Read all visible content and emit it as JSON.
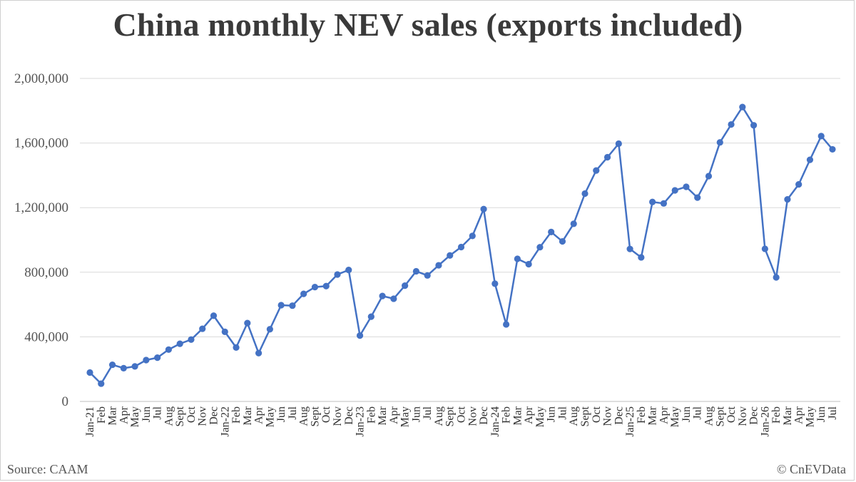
{
  "chart_data": {
    "type": "line",
    "title": "China monthly NEV sales (exports included)",
    "ylim": [
      0,
      2000000
    ],
    "yticks": [
      "0",
      "400,000",
      "800,000",
      "1,200,000",
      "1,600,000",
      "2,000,000"
    ],
    "grid": true,
    "legend": "none",
    "color": "#4472c4",
    "categories": [
      "Jan-21",
      "Feb",
      "Mar",
      "Apr",
      "May",
      "Jun",
      "Jul",
      "Aug",
      "Sept",
      "Oct",
      "Nov",
      "Dec",
      "Jan-22",
      "Feb",
      "Mar",
      "Apr",
      "May",
      "Jun",
      "Jul",
      "Aug",
      "Sept",
      "Oct",
      "Nov",
      "Dec",
      "Jan-23",
      "Feb",
      "Mar",
      "Apr",
      "May",
      "Jun",
      "Jul",
      "Aug",
      "Sept",
      "Oct",
      "Nov",
      "Dec",
      "Jan-24",
      "Feb",
      "Mar",
      "Apr",
      "May",
      "Jun",
      "Jul",
      "Aug",
      "Sept",
      "Oct",
      "Nov",
      "Dec",
      "Jan-25",
      "Feb",
      "Mar",
      "Apr",
      "May",
      "Jun",
      "Jul",
      "Aug",
      "Sept",
      "Oct",
      "Nov",
      "Dec",
      "Jan-26",
      "Feb",
      "Mar",
      "Apr",
      "May",
      "Jun",
      "Jul"
    ],
    "values": [
      179000,
      110000,
      227000,
      206000,
      217000,
      256000,
      271000,
      321000,
      357000,
      383000,
      450000,
      531000,
      431000,
      334000,
      485000,
      299000,
      447000,
      596000,
      593000,
      666000,
      708000,
      714000,
      786000,
      814000,
      408000,
      525000,
      653000,
      636000,
      717000,
      806000,
      780000,
      843000,
      904000,
      956000,
      1025000,
      1191000,
      729000,
      477000,
      883000,
      850000,
      955000,
      1049000,
      991000,
      1100000,
      1287000,
      1430000,
      1512000,
      1596000,
      944000,
      892000,
      1235000,
      1226000,
      1307000,
      1329000,
      1262000,
      1395000,
      1604000,
      1715000,
      1823000,
      1710000,
      945000,
      768000,
      1251000,
      1344000,
      1496000,
      1643000,
      1561000
    ]
  },
  "footer": {
    "source": "Source: CAAM",
    "credit": "© CnEVData"
  }
}
